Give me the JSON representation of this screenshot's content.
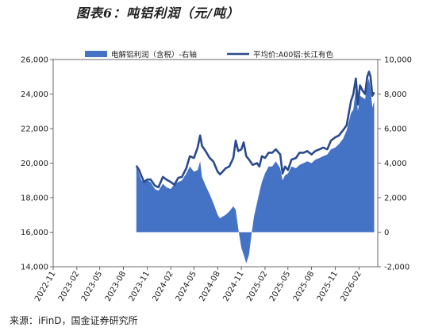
{
  "title": "图表6：吨铝利润（元/吨）",
  "source": "来源：iFinD，国金证券研究所",
  "chart_data": {
    "type": "line+area",
    "colors": {
      "price_line": "#2a4a8e",
      "profit_area": "#4472c4"
    },
    "legend": {
      "placement": "top",
      "entries": [
        "电解铝利润（含税）-右轴",
        "平均价:A00铝:长江有色"
      ]
    },
    "x_ticks": [
      "2022-11",
      "2023-02",
      "2023-05",
      "2023-08",
      "2023-11",
      "2024-02",
      "2024-05",
      "2024-08",
      "2024-11",
      "2025-02",
      "2025-05",
      "2025-08",
      "2025-11",
      "2026-02"
    ],
    "y_left": {
      "ticks": [
        "14,000",
        "16,000",
        "18,000",
        "20,000",
        "22,000",
        "24,000",
        "26,000"
      ],
      "range": [
        14000,
        26000
      ]
    },
    "y_right": {
      "ticks": [
        "-2,000",
        "0",
        "2,000",
        "4,000",
        "6,000",
        "8,000",
        "10,000"
      ],
      "range": [
        -2000,
        10000
      ]
    },
    "x_range": [
      "2022-11-01",
      "2026-04-15"
    ],
    "series": [
      {
        "name": "平均价:A00铝:长江有色",
        "axis": "left",
        "kind": "line",
        "points": [
          [
            "2023-09-20",
            19850
          ],
          [
            "2023-10-01",
            19600
          ],
          [
            "2023-10-10",
            19250
          ],
          [
            "2023-10-20",
            18900
          ],
          [
            "2023-11-01",
            19050
          ],
          [
            "2023-11-15",
            19050
          ],
          [
            "2023-12-01",
            18700
          ],
          [
            "2023-12-15",
            18600
          ],
          [
            "2024-01-01",
            19200
          ],
          [
            "2024-01-15",
            19050
          ],
          [
            "2024-02-01",
            18900
          ],
          [
            "2024-02-15",
            18750
          ],
          [
            "2024-03-01",
            19150
          ],
          [
            "2024-03-15",
            19200
          ],
          [
            "2024-04-01",
            19700
          ],
          [
            "2024-04-15",
            20400
          ],
          [
            "2024-05-01",
            20300
          ],
          [
            "2024-05-15",
            20900
          ],
          [
            "2024-05-25",
            21600
          ],
          [
            "2024-06-01",
            21000
          ],
          [
            "2024-06-15",
            20700
          ],
          [
            "2024-07-01",
            20300
          ],
          [
            "2024-07-15",
            20100
          ],
          [
            "2024-08-01",
            19500
          ],
          [
            "2024-08-10",
            19350
          ],
          [
            "2024-08-20",
            19500
          ],
          [
            "2024-09-01",
            19700
          ],
          [
            "2024-09-15",
            19800
          ],
          [
            "2024-10-01",
            20300
          ],
          [
            "2024-10-10",
            21300
          ],
          [
            "2024-10-20",
            20700
          ],
          [
            "2024-11-01",
            20800
          ],
          [
            "2024-11-10",
            21200
          ],
          [
            "2024-11-20",
            20400
          ],
          [
            "2024-12-01",
            20200
          ],
          [
            "2024-12-15",
            19900
          ],
          [
            "2025-01-01",
            20000
          ],
          [
            "2025-01-10",
            19800
          ],
          [
            "2025-01-20",
            20400
          ],
          [
            "2025-02-01",
            20300
          ],
          [
            "2025-02-15",
            20600
          ],
          [
            "2025-03-01",
            20600
          ],
          [
            "2025-03-15",
            20800
          ],
          [
            "2025-04-01",
            20500
          ],
          [
            "2025-04-10",
            19400
          ],
          [
            "2025-04-20",
            19800
          ],
          [
            "2025-05-01",
            19600
          ],
          [
            "2025-05-15",
            20200
          ],
          [
            "2025-06-01",
            20300
          ],
          [
            "2025-06-15",
            20600
          ],
          [
            "2025-07-01",
            20600
          ],
          [
            "2025-07-15",
            20700
          ],
          [
            "2025-08-01",
            20500
          ],
          [
            "2025-08-15",
            20700
          ],
          [
            "2025-09-01",
            20800
          ],
          [
            "2025-09-15",
            20900
          ],
          [
            "2025-10-01",
            20800
          ],
          [
            "2025-10-15",
            21300
          ],
          [
            "2025-11-01",
            21500
          ],
          [
            "2025-11-15",
            21600
          ],
          [
            "2025-12-01",
            21900
          ],
          [
            "2025-12-15",
            22200
          ],
          [
            "2026-01-01",
            23600
          ],
          [
            "2026-01-10",
            24000
          ],
          [
            "2026-01-20",
            24900
          ],
          [
            "2026-01-28",
            23400
          ],
          [
            "2026-02-05",
            24500
          ],
          [
            "2026-02-15",
            24200
          ],
          [
            "2026-02-25",
            24000
          ],
          [
            "2026-03-05",
            25000
          ],
          [
            "2026-03-12",
            25300
          ],
          [
            "2026-03-18",
            25000
          ],
          [
            "2026-03-25",
            23900
          ],
          [
            "2026-04-01",
            24100
          ]
        ]
      },
      {
        "name": "电解铝利润（含税）-右轴",
        "axis": "right",
        "kind": "area",
        "points": [
          [
            "2023-09-20",
            3950
          ],
          [
            "2023-10-01",
            3400
          ],
          [
            "2023-10-10",
            3000
          ],
          [
            "2023-10-20",
            2900
          ],
          [
            "2023-11-01",
            3000
          ],
          [
            "2023-11-15",
            2900
          ],
          [
            "2023-12-01",
            2500
          ],
          [
            "2023-12-15",
            2400
          ],
          [
            "2024-01-01",
            2800
          ],
          [
            "2024-01-15",
            2600
          ],
          [
            "2024-02-01",
            2500
          ],
          [
            "2024-02-15",
            2800
          ],
          [
            "2024-03-01",
            2900
          ],
          [
            "2024-03-15",
            3000
          ],
          [
            "2024-04-01",
            3400
          ],
          [
            "2024-04-15",
            3800
          ],
          [
            "2024-05-01",
            3500
          ],
          [
            "2024-05-15",
            3600
          ],
          [
            "2024-05-25",
            4100
          ],
          [
            "2024-06-01",
            3200
          ],
          [
            "2024-06-15",
            2700
          ],
          [
            "2024-07-01",
            2200
          ],
          [
            "2024-07-15",
            1700
          ],
          [
            "2024-08-01",
            1000
          ],
          [
            "2024-08-10",
            800
          ],
          [
            "2024-08-20",
            900
          ],
          [
            "2024-09-01",
            1000
          ],
          [
            "2024-09-15",
            1200
          ],
          [
            "2024-10-01",
            1500
          ],
          [
            "2024-10-10",
            1300
          ],
          [
            "2024-10-20",
            200
          ],
          [
            "2024-11-01",
            -900
          ],
          [
            "2024-11-10",
            -1300
          ],
          [
            "2024-11-20",
            -1800
          ],
          [
            "2024-12-01",
            -1300
          ],
          [
            "2024-12-10",
            -200
          ],
          [
            "2024-12-20",
            900
          ],
          [
            "2025-01-01",
            1700
          ],
          [
            "2025-01-10",
            2300
          ],
          [
            "2025-01-20",
            2900
          ],
          [
            "2025-02-01",
            3400
          ],
          [
            "2025-02-15",
            3800
          ],
          [
            "2025-03-01",
            3800
          ],
          [
            "2025-03-15",
            4100
          ],
          [
            "2025-04-01",
            3700
          ],
          [
            "2025-04-10",
            3000
          ],
          [
            "2025-04-20",
            3300
          ],
          [
            "2025-05-01",
            3400
          ],
          [
            "2025-05-15",
            3800
          ],
          [
            "2025-06-01",
            3700
          ],
          [
            "2025-06-15",
            3900
          ],
          [
            "2025-07-01",
            4000
          ],
          [
            "2025-07-15",
            4100
          ],
          [
            "2025-08-01",
            4000
          ],
          [
            "2025-08-15",
            4200
          ],
          [
            "2025-09-01",
            4300
          ],
          [
            "2025-09-15",
            4400
          ],
          [
            "2025-10-01",
            4500
          ],
          [
            "2025-10-15",
            4800
          ],
          [
            "2025-11-01",
            4900
          ],
          [
            "2025-11-15",
            5100
          ],
          [
            "2025-12-01",
            5400
          ],
          [
            "2025-12-15",
            5900
          ],
          [
            "2026-01-01",
            6900
          ],
          [
            "2026-01-10",
            7100
          ],
          [
            "2026-01-20",
            8300
          ],
          [
            "2026-01-28",
            7000
          ],
          [
            "2026-02-05",
            7900
          ],
          [
            "2026-02-15",
            7800
          ],
          [
            "2026-02-25",
            7700
          ],
          [
            "2026-03-05",
            8600
          ],
          [
            "2026-03-12",
            8900
          ],
          [
            "2026-03-18",
            8300
          ],
          [
            "2026-03-25",
            7200
          ],
          [
            "2026-04-01",
            7600
          ]
        ]
      }
    ]
  }
}
